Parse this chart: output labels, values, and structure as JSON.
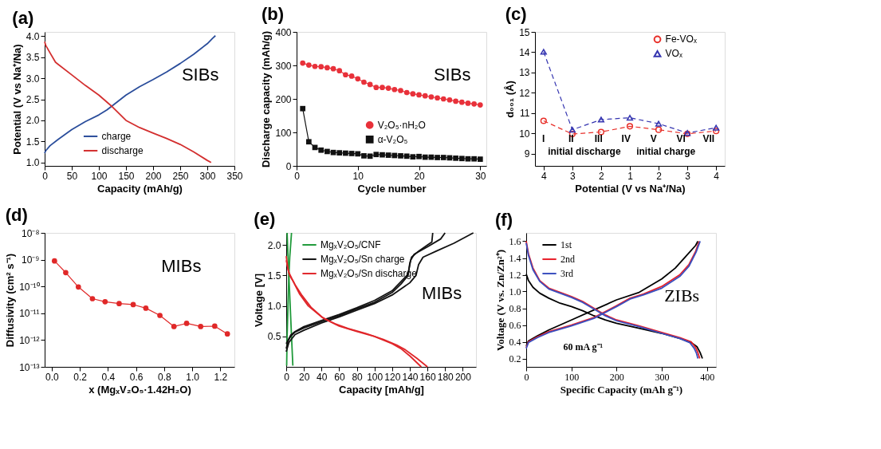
{
  "chart_data": [
    {
      "type": "line",
      "title": "(a)",
      "xlabel": "Capacity (mAh/g)",
      "ylabel": "Potential (V vs Na⁺/Na)",
      "xlim": [
        0,
        350
      ],
      "ylim": [
        0.92,
        4.1
      ],
      "xticks": [
        0,
        50,
        100,
        150,
        200,
        250,
        300,
        350
      ],
      "yticks": [
        {
          "value": 1.0,
          "label": "1.0"
        },
        {
          "value": 1.5,
          "label": "1.5"
        },
        {
          "value": 2.0,
          "label": "2.0"
        },
        {
          "value": 2.5,
          "label": "2.5"
        },
        {
          "value": 3.0,
          "label": "3.0"
        },
        {
          "value": 3.5,
          "label": "3.5"
        },
        {
          "value": 4.0,
          "label": "4.0"
        }
      ],
      "legend": "bottom left",
      "annotations": [
        "SIBs"
      ],
      "series": [
        {
          "name": "charge",
          "color": "#2a4d9b",
          "x": [
            0,
            2,
            10,
            25,
            50,
            75,
            100,
            115,
            125,
            150,
            175,
            200,
            225,
            250,
            275,
            300,
            310,
            315
          ],
          "values": [
            1.22,
            1.28,
            1.4,
            1.55,
            1.78,
            1.97,
            2.13,
            2.25,
            2.35,
            2.6,
            2.8,
            2.97,
            3.15,
            3.35,
            3.57,
            3.82,
            3.95,
            4.01
          ]
        },
        {
          "name": "discharge",
          "color": "#d32f2f",
          "x": [
            0,
            2,
            10,
            20,
            25,
            50,
            75,
            100,
            125,
            150,
            175,
            200,
            225,
            250,
            275,
            300,
            307
          ],
          "values": [
            3.87,
            3.78,
            3.6,
            3.38,
            3.33,
            3.08,
            2.83,
            2.6,
            2.32,
            2.0,
            1.83,
            1.7,
            1.57,
            1.43,
            1.25,
            1.05,
            1.0
          ]
        }
      ]
    },
    {
      "type": "line",
      "title": "(b)",
      "xlabel": "Cycle number",
      "ylabel": "Discharge capacity (mAh/g)",
      "xlim": [
        0,
        31
      ],
      "ylim": [
        0,
        400
      ],
      "xticks": [
        0,
        10,
        20,
        30
      ],
      "yticks": [
        0,
        100,
        200,
        300,
        400
      ],
      "legend": "bottom",
      "annotations": [
        "SIBs"
      ],
      "x": [
        1,
        2,
        3,
        4,
        5,
        6,
        7,
        8,
        9,
        10,
        11,
        12,
        13,
        14,
        15,
        16,
        17,
        18,
        19,
        20,
        21,
        22,
        23,
        24,
        25,
        26,
        27,
        28,
        29,
        30
      ],
      "series": [
        {
          "name": "V₂O₅·nH₂O",
          "color": "#e8313a",
          "marker": "circle",
          "values": [
            307,
            301,
            297,
            296,
            293,
            290,
            284,
            272,
            268,
            260,
            250,
            243,
            234,
            234,
            232,
            228,
            225,
            219,
            215,
            212,
            209,
            206,
            203,
            200,
            197,
            193,
            190,
            187,
            185,
            182
          ]
        },
        {
          "name": "α-V₂O₅",
          "color": "#111111",
          "marker": "square",
          "values": [
            171,
            72,
            55,
            47,
            43,
            40,
            39,
            38,
            37,
            36,
            30,
            29,
            34,
            33,
            32,
            31,
            30,
            29,
            27,
            28,
            26,
            26,
            25,
            25,
            24,
            23,
            22,
            21,
            21,
            20
          ]
        }
      ]
    },
    {
      "type": "line",
      "title": "(c)",
      "xlabel": "Potential (V vs Na⁺/Na)",
      "ylabel": "d₀₀₁ (Å)",
      "ylim": [
        8.4,
        15
      ],
      "categories": [
        "4",
        "3",
        "2",
        "1",
        "2",
        "3",
        "4"
      ],
      "yticks": [
        9,
        10,
        11,
        12,
        13,
        14,
        15
      ],
      "legend": "top right",
      "line_style": "dashed",
      "annotations": [
        "I",
        "II",
        "III",
        "IV",
        "V",
        "VI",
        "VII",
        "initial discharge",
        "initial charge"
      ],
      "series": [
        {
          "name": "Fe-VOₓ",
          "color": "#e8302a",
          "marker": "circle",
          "values": [
            10.62,
            9.97,
            10.07,
            10.35,
            10.18,
            9.98,
            10.12
          ]
        },
        {
          "name": "VOₓ",
          "color": "#3535b0",
          "marker": "triangle",
          "values": [
            14.02,
            10.18,
            10.68,
            10.77,
            10.48,
            10.02,
            10.28
          ]
        }
      ]
    },
    {
      "type": "line",
      "title": "(d)",
      "xlabel": "x (MgₓV₂O₅·1.42H₂O)",
      "ylabel": "Diffusivity (cm² s⁻¹)",
      "log": "y",
      "xlim": [
        -0.05,
        1.3
      ],
      "ylim": [
        1e-13,
        1e-08
      ],
      "xticks": [
        {
          "value": 0,
          "label": "0.0"
        },
        {
          "value": 0.2,
          "label": "0.2"
        },
        {
          "value": 0.4,
          "label": "0.4"
        },
        {
          "value": 0.6,
          "label": "0.6"
        },
        {
          "value": 0.8,
          "label": "0.8"
        },
        {
          "value": 1.0,
          "label": "1.0"
        },
        {
          "value": 1.2,
          "label": "1.2"
        }
      ],
      "yticks": [
        {
          "value": 1e-13,
          "label": "10⁻¹³"
        },
        {
          "value": 1e-12,
          "label": "10⁻¹²"
        },
        {
          "value": 1e-11,
          "label": "10⁻¹¹"
        },
        {
          "value": 1e-10,
          "label": "10⁻¹⁰"
        },
        {
          "value": 1e-09,
          "label": "10⁻⁹"
        },
        {
          "value": 1e-08,
          "label": "10⁻⁸"
        }
      ],
      "annotations": [
        "MIBs"
      ],
      "series": [
        {
          "color": "#e02828",
          "marker": "circle",
          "x": [
            0.02,
            0.1,
            0.19,
            0.29,
            0.38,
            0.48,
            0.58,
            0.67,
            0.77,
            0.87,
            0.96,
            1.06,
            1.16,
            1.25
          ],
          "values": [
            9e-10,
            3.3e-10,
            9.6e-11,
            3.5e-11,
            2.7e-11,
            2.3e-11,
            2.1e-11,
            1.55e-11,
            8.3e-12,
            3.2e-12,
            4.2e-12,
            3.2e-12,
            3.3e-12,
            1.7e-12
          ]
        }
      ]
    },
    {
      "type": "line",
      "title": "(e)",
      "xlabel": "Capacity [mAh/g]",
      "ylabel": "Voltage [V]",
      "xlim": [
        0,
        215
      ],
      "ylim": [
        0,
        2.2
      ],
      "xticks": [
        0,
        20,
        40,
        60,
        80,
        100,
        120,
        140,
        160,
        180,
        200
      ],
      "yticks": [
        {
          "value": 0.5,
          "label": "0.5"
        },
        {
          "value": 1.0,
          "label": "1.0"
        },
        {
          "value": 1.5,
          "label": "1.5"
        },
        {
          "value": 2.0,
          "label": "2.0"
        }
      ],
      "legend": "top left",
      "annotations": [
        "MIBs"
      ],
      "series": [
        {
          "name": "MgₓV₂O₅/CNF",
          "color": "#1f9a3a",
          "x": [
            7.5,
            6,
            4.5,
            3,
            1.5,
            1
          ],
          "values": [
            0.02,
            0.5,
            1.0,
            1.5,
            2.0,
            2.2
          ]
        },
        {
          "color": "#1f9a3a",
          "x": [
            0.5,
            1,
            2,
            3,
            4,
            5,
            6
          ],
          "values": [
            0.02,
            0.5,
            1.0,
            1.5,
            1.8,
            2.0,
            2.2
          ]
        },
        {
          "name": "MgₓV₂O₅/Sn charge",
          "color": "#111111",
          "x": [
            0,
            2,
            5,
            10,
            20,
            40,
            60,
            80,
            100,
            120,
            130,
            138,
            140,
            142,
            150,
            160,
            165,
            166
          ],
          "values": [
            0.3,
            0.42,
            0.5,
            0.57,
            0.64,
            0.74,
            0.84,
            0.95,
            1.06,
            1.22,
            1.36,
            1.5,
            1.7,
            1.8,
            1.9,
            2.0,
            2.05,
            2.2
          ]
        },
        {
          "color": "#111111",
          "x": [
            0,
            5,
            10,
            20,
            40,
            60,
            80,
            100,
            120,
            130,
            138,
            141,
            145,
            160,
            175,
            180
          ],
          "values": [
            0.38,
            0.52,
            0.58,
            0.66,
            0.76,
            0.86,
            0.97,
            1.09,
            1.25,
            1.4,
            1.52,
            1.75,
            1.85,
            1.97,
            2.1,
            2.2
          ]
        },
        {
          "color": "#111111",
          "x": [
            0,
            3,
            10,
            20,
            40,
            60,
            80,
            100,
            120,
            140,
            147,
            150,
            155,
            170,
            190,
            212
          ],
          "values": [
            0.25,
            0.4,
            0.53,
            0.6,
            0.72,
            0.82,
            0.93,
            1.04,
            1.18,
            1.38,
            1.5,
            1.68,
            1.8,
            1.9,
            2.03,
            2.2
          ]
        },
        {
          "name": "MgₓV₂O₅/Sn discharge",
          "color": "#e0262a",
          "x": [
            0,
            2,
            4,
            8,
            15,
            25,
            40,
            50,
            60,
            80,
            100,
            120,
            130,
            140,
            153
          ],
          "values": [
            1.82,
            1.6,
            1.5,
            1.4,
            1.2,
            1.0,
            0.82,
            0.74,
            0.67,
            0.58,
            0.5,
            0.38,
            0.3,
            0.18,
            0.0
          ]
        },
        {
          "color": "#e0262a",
          "x": [
            0,
            3,
            6,
            10,
            18,
            28,
            42,
            55,
            70,
            90,
            110,
            125,
            135,
            148,
            160
          ],
          "values": [
            1.75,
            1.55,
            1.46,
            1.35,
            1.17,
            0.98,
            0.8,
            0.71,
            0.63,
            0.55,
            0.45,
            0.36,
            0.28,
            0.14,
            0.0
          ]
        }
      ]
    },
    {
      "type": "line",
      "title": "(f)",
      "xlabel": "Specific Capacity (mAh g⁻¹)",
      "ylabel": "Voltage (V vs. Zn/Zn²⁺)",
      "xlim": [
        0,
        420
      ],
      "ylim": [
        0.1,
        1.7
      ],
      "xticks": [
        0,
        100,
        200,
        300,
        400
      ],
      "yticks": [
        {
          "value": 0.2,
          "label": "0.2"
        },
        {
          "value": 0.4,
          "label": "0.4"
        },
        {
          "value": 0.6,
          "label": "0.6"
        },
        {
          "value": 0.8,
          "label": "0.8"
        },
        {
          "value": 1.0,
          "label": "1.0"
        },
        {
          "value": 1.2,
          "label": "1.2"
        },
        {
          "value": 1.4,
          "label": "1.4"
        },
        {
          "value": 1.6,
          "label": "1.6"
        }
      ],
      "legend": "top left",
      "annotations": [
        "ZIBs",
        "60 mA g⁻¹"
      ],
      "series": [
        {
          "name": "1st",
          "color": "#000000",
          "x": [
            0,
            5,
            15,
            30,
            50,
            75,
            100,
            125,
            150,
            175,
            200,
            250,
            300,
            340,
            365,
            378,
            385,
            390
          ],
          "values": [
            1.21,
            1.13,
            1.05,
            0.98,
            0.92,
            0.86,
            0.82,
            0.77,
            0.71,
            0.66,
            0.62,
            0.56,
            0.5,
            0.44,
            0.39,
            0.34,
            0.27,
            0.2
          ]
        },
        {
          "color": "#000000",
          "x": [
            0,
            5,
            25,
            50,
            100,
            150,
            200,
            250,
            300,
            330,
            355,
            375,
            380
          ],
          "values": [
            0.35,
            0.41,
            0.47,
            0.54,
            0.66,
            0.78,
            0.9,
            0.99,
            1.15,
            1.28,
            1.43,
            1.55,
            1.6
          ]
        },
        {
          "name": "2nd",
          "color": "#e8202a",
          "x": [
            0,
            5,
            15,
            30,
            50,
            75,
            100,
            125,
            150,
            175,
            200,
            250,
            300,
            340,
            365,
            375,
            380,
            384
          ],
          "values": [
            1.6,
            1.45,
            1.28,
            1.13,
            1.04,
            0.99,
            0.94,
            0.88,
            0.8,
            0.72,
            0.66,
            0.59,
            0.51,
            0.45,
            0.4,
            0.33,
            0.27,
            0.2
          ]
        },
        {
          "color": "#e8202a",
          "x": [
            0,
            5,
            25,
            50,
            100,
            150,
            200,
            230,
            260,
            300,
            340,
            360,
            375,
            383
          ],
          "values": [
            0.33,
            0.4,
            0.46,
            0.52,
            0.6,
            0.69,
            0.83,
            0.92,
            0.97,
            1.06,
            1.2,
            1.32,
            1.48,
            1.6
          ]
        },
        {
          "name": "3rd",
          "color": "#3a4fbf",
          "x": [
            0,
            5,
            15,
            30,
            50,
            75,
            100,
            125,
            150,
            175,
            200,
            250,
            300,
            340,
            362,
            372,
            377,
            380
          ],
          "values": [
            1.58,
            1.43,
            1.26,
            1.12,
            1.03,
            0.98,
            0.93,
            0.87,
            0.79,
            0.71,
            0.65,
            0.58,
            0.5,
            0.44,
            0.39,
            0.32,
            0.26,
            0.2
          ]
        },
        {
          "color": "#3a4fbf",
          "x": [
            0,
            5,
            25,
            50,
            100,
            150,
            200,
            230,
            260,
            300,
            340,
            360,
            376,
            385
          ],
          "values": [
            0.32,
            0.39,
            0.45,
            0.51,
            0.59,
            0.68,
            0.82,
            0.91,
            0.96,
            1.04,
            1.18,
            1.3,
            1.47,
            1.6
          ]
        }
      ]
    }
  ]
}
